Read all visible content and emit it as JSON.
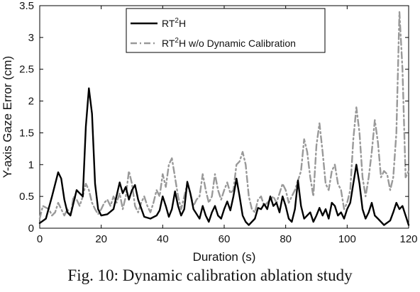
{
  "caption": "Fig. 10: Dynamic calibration ablation study",
  "chart_data": {
    "type": "line",
    "title": "",
    "xlabel": "Duration (s)",
    "ylabel": "Y-axis Gaze Error (cm)",
    "xlim": [
      0,
      120
    ],
    "ylim": [
      0,
      3.5
    ],
    "xticks": [
      0,
      20,
      40,
      60,
      80,
      100,
      120
    ],
    "yticks": [
      0,
      0.5,
      1,
      1.5,
      2,
      2.5,
      3,
      3.5
    ],
    "grid": false,
    "legend_position": "top-left",
    "series": [
      {
        "name_parts": [
          "RT",
          "2",
          "H"
        ],
        "color": "#000000",
        "style": "solid",
        "points": [
          [
            0,
            0.08
          ],
          [
            2,
            0.15
          ],
          [
            4,
            0.5
          ],
          [
            6,
            0.88
          ],
          [
            7,
            0.78
          ],
          [
            8,
            0.45
          ],
          [
            9,
            0.25
          ],
          [
            10,
            0.2
          ],
          [
            11,
            0.4
          ],
          [
            12,
            0.6
          ],
          [
            13,
            0.55
          ],
          [
            14,
            0.5
          ],
          [
            15,
            1.6
          ],
          [
            16,
            2.2
          ],
          [
            17,
            1.8
          ],
          [
            18,
            0.7
          ],
          [
            19,
            0.3
          ],
          [
            20,
            0.2
          ],
          [
            22,
            0.22
          ],
          [
            24,
            0.3
          ],
          [
            26,
            0.72
          ],
          [
            27,
            0.55
          ],
          [
            28,
            0.65
          ],
          [
            29,
            0.45
          ],
          [
            30,
            0.6
          ],
          [
            31,
            0.68
          ],
          [
            32,
            0.45
          ],
          [
            34,
            0.18
          ],
          [
            36,
            0.15
          ],
          [
            38,
            0.2
          ],
          [
            39,
            0.28
          ],
          [
            40,
            0.5
          ],
          [
            41,
            0.35
          ],
          [
            42,
            0.18
          ],
          [
            43,
            0.3
          ],
          [
            44,
            0.58
          ],
          [
            45,
            0.35
          ],
          [
            46,
            0.2
          ],
          [
            47,
            0.3
          ],
          [
            48,
            0.73
          ],
          [
            49,
            0.55
          ],
          [
            50,
            0.3
          ],
          [
            52,
            0.15
          ],
          [
            53,
            0.35
          ],
          [
            54,
            0.2
          ],
          [
            55,
            0.1
          ],
          [
            56,
            0.25
          ],
          [
            57,
            0.35
          ],
          [
            58,
            0.2
          ],
          [
            59,
            0.15
          ],
          [
            60,
            0.3
          ],
          [
            61,
            0.42
          ],
          [
            62,
            0.28
          ],
          [
            63,
            0.5
          ],
          [
            64,
            0.78
          ],
          [
            65,
            0.5
          ],
          [
            66,
            0.2
          ],
          [
            67,
            0.1
          ],
          [
            68,
            0.05
          ],
          [
            70,
            0.15
          ],
          [
            71,
            0.32
          ],
          [
            72,
            0.3
          ],
          [
            73,
            0.38
          ],
          [
            74,
            0.3
          ],
          [
            75,
            0.5
          ],
          [
            76,
            0.35
          ],
          [
            77,
            0.4
          ],
          [
            78,
            0.25
          ],
          [
            79,
            0.5
          ],
          [
            80,
            0.35
          ],
          [
            81,
            0.15
          ],
          [
            82,
            0.1
          ],
          [
            83,
            0.3
          ],
          [
            84,
            0.75
          ],
          [
            85,
            0.35
          ],
          [
            86,
            0.15
          ],
          [
            88,
            0.25
          ],
          [
            89,
            0.1
          ],
          [
            90,
            0.2
          ],
          [
            91,
            0.32
          ],
          [
            92,
            0.2
          ],
          [
            93,
            0.3
          ],
          [
            94,
            0.15
          ],
          [
            95,
            0.4
          ],
          [
            96,
            0.35
          ],
          [
            97,
            0.2
          ],
          [
            98,
            0.25
          ],
          [
            99,
            0.15
          ],
          [
            100,
            0.3
          ],
          [
            101,
            0.4
          ],
          [
            102,
            0.7
          ],
          [
            103,
            1.0
          ],
          [
            104,
            0.7
          ],
          [
            105,
            0.3
          ],
          [
            106,
            0.15
          ],
          [
            107,
            0.25
          ],
          [
            108,
            0.4
          ],
          [
            109,
            0.2
          ],
          [
            110,
            0.15
          ],
          [
            112,
            0.05
          ],
          [
            114,
            0.12
          ],
          [
            115,
            0.25
          ],
          [
            116,
            0.4
          ],
          [
            117,
            0.3
          ],
          [
            118,
            0.35
          ],
          [
            119,
            0.2
          ],
          [
            120,
            0.05
          ]
        ]
      },
      {
        "name_parts": [
          "RT",
          "2",
          "H w/o Dynamic Calibration"
        ],
        "color": "#999999",
        "style": "dashdot",
        "points": [
          [
            0,
            0.15
          ],
          [
            1,
            0.35
          ],
          [
            3,
            0.3
          ],
          [
            4,
            0.2
          ],
          [
            5,
            0.25
          ],
          [
            6,
            0.4
          ],
          [
            7,
            0.3
          ],
          [
            8,
            0.2
          ],
          [
            9,
            0.3
          ],
          [
            10,
            0.2
          ],
          [
            11,
            0.5
          ],
          [
            12,
            0.45
          ],
          [
            13,
            0.35
          ],
          [
            14,
            0.5
          ],
          [
            15,
            0.7
          ],
          [
            16,
            0.6
          ],
          [
            17,
            0.4
          ],
          [
            18,
            0.3
          ],
          [
            19,
            0.22
          ],
          [
            20,
            0.3
          ],
          [
            21,
            0.4
          ],
          [
            22,
            0.45
          ],
          [
            23,
            0.35
          ],
          [
            24,
            0.5
          ],
          [
            25,
            0.4
          ],
          [
            26,
            0.55
          ],
          [
            27,
            0.3
          ],
          [
            28,
            0.5
          ],
          [
            29,
            0.9
          ],
          [
            30,
            0.7
          ],
          [
            31,
            0.35
          ],
          [
            32,
            0.25
          ],
          [
            33,
            0.4
          ],
          [
            34,
            0.5
          ],
          [
            35,
            0.35
          ],
          [
            36,
            0.25
          ],
          [
            37,
            0.4
          ],
          [
            38,
            0.6
          ],
          [
            39,
            0.5
          ],
          [
            40,
            0.85
          ],
          [
            41,
            0.65
          ],
          [
            42,
            1.0
          ],
          [
            43,
            1.1
          ],
          [
            44,
            0.8
          ],
          [
            45,
            0.5
          ],
          [
            46,
            0.3
          ],
          [
            47,
            0.5
          ],
          [
            48,
            0.7
          ],
          [
            49,
            0.55
          ],
          [
            50,
            0.35
          ],
          [
            51,
            0.45
          ],
          [
            52,
            0.5
          ],
          [
            53,
            0.85
          ],
          [
            54,
            0.6
          ],
          [
            55,
            0.4
          ],
          [
            56,
            0.5
          ],
          [
            57,
            0.85
          ],
          [
            58,
            0.6
          ],
          [
            59,
            0.45
          ],
          [
            60,
            0.6
          ],
          [
            61,
            0.72
          ],
          [
            62,
            0.55
          ],
          [
            63,
            0.6
          ],
          [
            64,
            1.0
          ],
          [
            65,
            1.05
          ],
          [
            66,
            1.2
          ],
          [
            67,
            1.0
          ],
          [
            68,
            0.5
          ],
          [
            69,
            0.3
          ],
          [
            70,
            0.25
          ],
          [
            71,
            0.45
          ],
          [
            72,
            0.5
          ],
          [
            73,
            0.35
          ],
          [
            74,
            0.4
          ],
          [
            75,
            0.45
          ],
          [
            76,
            0.5
          ],
          [
            77,
            0.4
          ],
          [
            78,
            0.55
          ],
          [
            79,
            0.7
          ],
          [
            80,
            0.6
          ],
          [
            81,
            0.4
          ],
          [
            82,
            0.5
          ],
          [
            83,
            0.6
          ],
          [
            84,
            0.75
          ],
          [
            85,
            0.9
          ],
          [
            86,
            1.4
          ],
          [
            87,
            1.2
          ],
          [
            88,
            0.8
          ],
          [
            89,
            0.5
          ],
          [
            90,
            1.3
          ],
          [
            91,
            1.65
          ],
          [
            92,
            1.2
          ],
          [
            93,
            0.7
          ],
          [
            94,
            0.6
          ],
          [
            95,
            0.9
          ],
          [
            96,
            1.0
          ],
          [
            97,
            0.7
          ],
          [
            98,
            0.6
          ],
          [
            99,
            0.3
          ],
          [
            100,
            0.4
          ],
          [
            101,
            0.6
          ],
          [
            102,
            1.4
          ],
          [
            103,
            1.9
          ],
          [
            104,
            1.5
          ],
          [
            105,
            0.8
          ],
          [
            106,
            0.5
          ],
          [
            107,
            0.8
          ],
          [
            108,
            1.2
          ],
          [
            109,
            1.7
          ],
          [
            110,
            1.35
          ],
          [
            111,
            0.8
          ],
          [
            112,
            0.9
          ],
          [
            113,
            0.85
          ],
          [
            114,
            0.6
          ],
          [
            115,
            0.8
          ],
          [
            116,
            1.5
          ],
          [
            117,
            3.4
          ],
          [
            118,
            2.5
          ],
          [
            119,
            0.8
          ],
          [
            120,
            0.9
          ]
        ]
      }
    ]
  }
}
